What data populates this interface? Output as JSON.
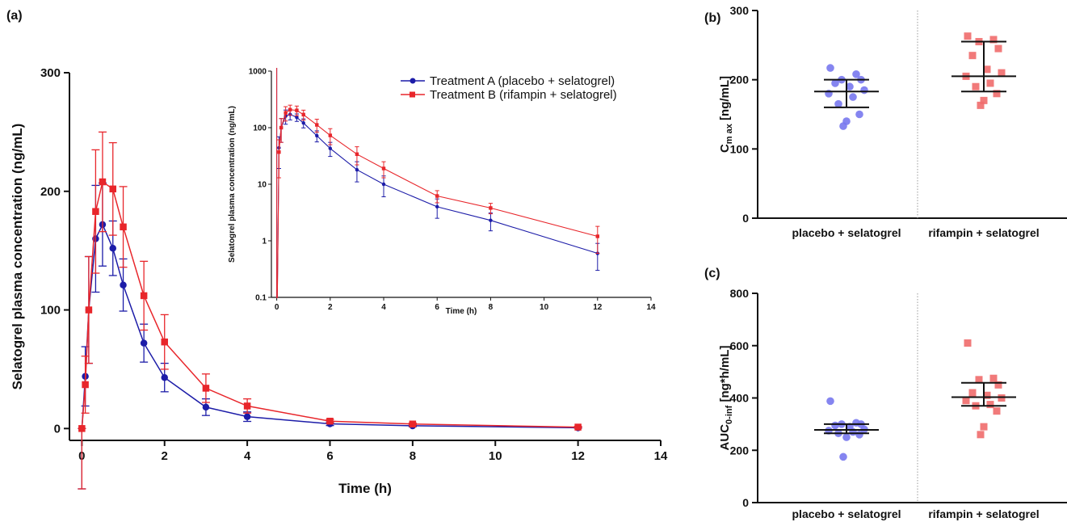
{
  "chart_data": [
    {
      "type": "line",
      "panel_label": "(a)",
      "xlabel": "Time (h)",
      "ylabel": "Selatogrel plasma concentration (ng/mL)",
      "x": [
        0,
        0.083,
        0.167,
        0.333,
        0.5,
        0.75,
        1,
        1.5,
        2,
        3,
        4,
        6,
        8,
        12
      ],
      "series": [
        {
          "name": "Treatment A (placebo + selatogrel)",
          "color": "#1c1ca8",
          "marker": "circle",
          "values": [
            0,
            44,
            100,
            160,
            172,
            152,
            121,
            72,
            43,
            18,
            10,
            4,
            2.3,
            0.6
          ],
          "errors": [
            0,
            25,
            45,
            45,
            35,
            23,
            22,
            16,
            12,
            7,
            4,
            1.5,
            0.8,
            0.3
          ]
        },
        {
          "name": "Treatment B (rifampin + selatogrel)",
          "color": "#e8262b",
          "marker": "square",
          "values": [
            0,
            37,
            100,
            183,
            208,
            202,
            170,
            112,
            73,
            34,
            19,
            6.2,
            3.8,
            1.2
          ],
          "errors": [
            0,
            24,
            45,
            52,
            42,
            39,
            34,
            29,
            23,
            12,
            6,
            1.5,
            0.8,
            0.6
          ]
        }
      ],
      "xlim": [
        -0.3,
        14
      ],
      "xticks": [
        0,
        2,
        4,
        6,
        8,
        10,
        12,
        14
      ],
      "ylim": [
        -10,
        300
      ],
      "yticks": [
        0,
        100,
        200,
        300
      ],
      "inset": {
        "xlabel": "Time (h)",
        "ylabel": "Selatogrel plasma concentration (ng/mL)",
        "log_scale": true,
        "xlim": [
          -0.2,
          14
        ],
        "xticks": [
          0,
          2,
          4,
          6,
          8,
          10,
          12,
          14
        ],
        "ylim": [
          0.1,
          1000
        ],
        "yticks": [
          0.1,
          1,
          10,
          100,
          1000
        ]
      }
    },
    {
      "type": "dot",
      "panel_label": "(b)",
      "ylabel": {
        "main": "C",
        "sub": "m ax",
        "rest": " [ng/mL]"
      },
      "ylim": [
        0,
        300
      ],
      "yticks": [
        0,
        100,
        200,
        300
      ],
      "groups": [
        {
          "label": "placebo + selatogrel",
          "color": "#7878ee",
          "values": [
            217,
            208,
            200,
            200,
            195,
            190,
            185,
            180,
            175,
            165,
            150,
            140,
            133
          ],
          "center": 183,
          "low": 160,
          "high": 200
        },
        {
          "label": "rifampin + selatogrel",
          "color": "#f06c6c",
          "values": [
            263,
            258,
            255,
            245,
            235,
            215,
            210,
            205,
            195,
            190,
            180,
            170,
            163
          ],
          "center": 205,
          "low": 183,
          "high": 255
        }
      ]
    },
    {
      "type": "dot",
      "panel_label": "(c)",
      "ylabel": {
        "main": "AUC",
        "sub": "0-inf",
        "rest": " [ng*h/mL]"
      },
      "ylim": [
        0,
        800
      ],
      "yticks": [
        0,
        200,
        400,
        600,
        800
      ],
      "groups": [
        {
          "label": "placebo + selatogrel",
          "color": "#7878ee",
          "values": [
            388,
            305,
            300,
            300,
            295,
            290,
            280,
            275,
            270,
            265,
            260,
            250,
            175
          ],
          "center": 278,
          "low": 265,
          "high": 300
        },
        {
          "label": "rifampin + selatogrel",
          "color": "#f06c6c",
          "values": [
            610,
            475,
            470,
            450,
            420,
            410,
            400,
            390,
            375,
            370,
            350,
            290,
            260
          ],
          "center": 403,
          "low": 370,
          "high": 458
        }
      ]
    }
  ]
}
